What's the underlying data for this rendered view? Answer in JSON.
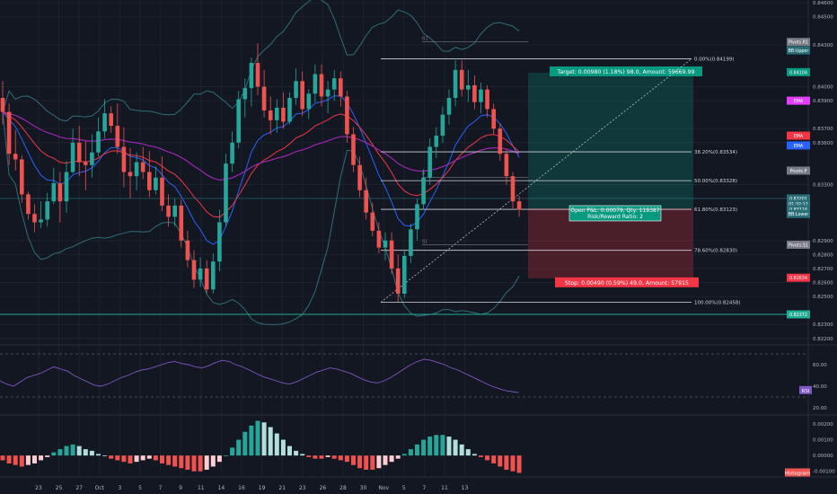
{
  "chart_data": {
    "type": "candlestick",
    "price_axis_ticks": [
      "0.84600",
      "0.84500",
      "0.84300",
      "0.84000",
      "0.83900",
      "0.83700",
      "0.83600",
      "0.83300",
      "0.82900",
      "0.82800",
      "0.82700",
      "0.82600",
      "0.82500",
      "0.82300",
      "0.82200"
    ],
    "price_range": [
      0.8216,
      0.8462
    ],
    "rsi_ticks": [
      "60.00",
      "40.00",
      "20.00"
    ],
    "hist_ticks": [
      "0.00200",
      "0.00100",
      "0.00000",
      "-0.00100"
    ],
    "x_ticks": [
      "23",
      "25",
      "27",
      "Oct",
      "3",
      "5",
      "7",
      "9",
      "11",
      "14",
      "16",
      "19",
      "21",
      "23",
      "26",
      "28",
      "30",
      "Nov",
      "5",
      "7",
      "11",
      "13"
    ],
    "candles": [
      [
        0.8392,
        0.8404,
        0.8373,
        0.8382
      ],
      [
        0.8382,
        0.8388,
        0.8344,
        0.8352
      ],
      [
        0.8352,
        0.8369,
        0.834,
        0.8348
      ],
      [
        0.8348,
        0.8351,
        0.8317,
        0.8323
      ],
      [
        0.8323,
        0.8325,
        0.8305,
        0.8309
      ],
      [
        0.8309,
        0.8316,
        0.8296,
        0.8303
      ],
      [
        0.8303,
        0.8318,
        0.8299,
        0.8305
      ],
      [
        0.8305,
        0.8324,
        0.83,
        0.8318
      ],
      [
        0.8318,
        0.8342,
        0.8316,
        0.8331
      ],
      [
        0.8331,
        0.8339,
        0.8303,
        0.8318
      ],
      [
        0.8318,
        0.8347,
        0.831,
        0.8339
      ],
      [
        0.8339,
        0.837,
        0.8338,
        0.836
      ],
      [
        0.836,
        0.8372,
        0.8336,
        0.8346
      ],
      [
        0.8346,
        0.8361,
        0.8326,
        0.8344
      ],
      [
        0.8344,
        0.8366,
        0.8335,
        0.8353
      ],
      [
        0.8353,
        0.8378,
        0.835,
        0.8368
      ],
      [
        0.8368,
        0.8391,
        0.8363,
        0.8381
      ],
      [
        0.8381,
        0.8386,
        0.8367,
        0.8372
      ],
      [
        0.8372,
        0.8388,
        0.8352,
        0.8357
      ],
      [
        0.8357,
        0.8371,
        0.8328,
        0.8339
      ],
      [
        0.8339,
        0.8356,
        0.832,
        0.8336
      ],
      [
        0.8336,
        0.8353,
        0.8326,
        0.8346
      ],
      [
        0.8346,
        0.8357,
        0.8334,
        0.8339
      ],
      [
        0.8339,
        0.8354,
        0.8321,
        0.8326
      ],
      [
        0.8326,
        0.8343,
        0.8323,
        0.8335
      ],
      [
        0.8335,
        0.835,
        0.8311,
        0.8315
      ],
      [
        0.8315,
        0.8323,
        0.83,
        0.8307
      ],
      [
        0.8307,
        0.832,
        0.83,
        0.8315
      ],
      [
        0.8315,
        0.8319,
        0.8285,
        0.829
      ],
      [
        0.829,
        0.8297,
        0.8271,
        0.8276
      ],
      [
        0.8276,
        0.8283,
        0.8256,
        0.8262
      ],
      [
        0.8262,
        0.8278,
        0.8257,
        0.827
      ],
      [
        0.827,
        0.8276,
        0.8252,
        0.8255
      ],
      [
        0.8255,
        0.8281,
        0.8252,
        0.8275
      ],
      [
        0.8275,
        0.8312,
        0.8268,
        0.8303
      ],
      [
        0.8303,
        0.8352,
        0.83,
        0.8345
      ],
      [
        0.8345,
        0.8368,
        0.8339,
        0.836
      ],
      [
        0.836,
        0.8397,
        0.8356,
        0.8391
      ],
      [
        0.8391,
        0.8406,
        0.8378,
        0.8399
      ],
      [
        0.8399,
        0.8421,
        0.8386,
        0.8417
      ],
      [
        0.8417,
        0.8431,
        0.8394,
        0.84
      ],
      [
        0.84,
        0.8412,
        0.8378,
        0.8383
      ],
      [
        0.8383,
        0.8393,
        0.8366,
        0.8376
      ],
      [
        0.8376,
        0.8391,
        0.8367,
        0.8385
      ],
      [
        0.8385,
        0.8396,
        0.837,
        0.8375
      ],
      [
        0.8375,
        0.8396,
        0.8373,
        0.8392
      ],
      [
        0.8392,
        0.8413,
        0.8387,
        0.8404
      ],
      [
        0.8404,
        0.8411,
        0.8379,
        0.8384
      ],
      [
        0.8384,
        0.8398,
        0.8377,
        0.8395
      ],
      [
        0.8395,
        0.8416,
        0.8389,
        0.8409
      ],
      [
        0.8409,
        0.8416,
        0.8386,
        0.8393
      ],
      [
        0.8393,
        0.8404,
        0.8381,
        0.8398
      ],
      [
        0.8398,
        0.8412,
        0.839,
        0.8406
      ],
      [
        0.8406,
        0.8411,
        0.8386,
        0.8393
      ],
      [
        0.8393,
        0.8397,
        0.836,
        0.8366
      ],
      [
        0.8366,
        0.8371,
        0.8339,
        0.8344
      ],
      [
        0.8344,
        0.835,
        0.8321,
        0.8326
      ],
      [
        0.8326,
        0.8335,
        0.8305,
        0.831
      ],
      [
        0.831,
        0.8317,
        0.8293,
        0.8297
      ],
      [
        0.8297,
        0.8303,
        0.8281,
        0.8285
      ],
      [
        0.8285,
        0.8296,
        0.8276,
        0.829
      ],
      [
        0.829,
        0.8296,
        0.8266,
        0.827
      ],
      [
        0.827,
        0.828,
        0.8246,
        0.8252
      ],
      [
        0.8252,
        0.8283,
        0.8249,
        0.8279
      ],
      [
        0.8279,
        0.8302,
        0.8274,
        0.8298
      ],
      [
        0.8298,
        0.832,
        0.829,
        0.8316
      ],
      [
        0.8316,
        0.8341,
        0.8312,
        0.8335
      ],
      [
        0.8335,
        0.8363,
        0.833,
        0.8357
      ],
      [
        0.8357,
        0.8371,
        0.8349,
        0.8365
      ],
      [
        0.8365,
        0.8386,
        0.836,
        0.838
      ],
      [
        0.838,
        0.8398,
        0.8373,
        0.8392
      ],
      [
        0.8392,
        0.8419,
        0.8386,
        0.8412
      ],
      [
        0.8412,
        0.8419,
        0.8393,
        0.8398
      ],
      [
        0.8398,
        0.8412,
        0.8389,
        0.8401
      ],
      [
        0.8401,
        0.8408,
        0.8384,
        0.8389
      ],
      [
        0.8389,
        0.8403,
        0.8381,
        0.8398
      ],
      [
        0.8398,
        0.8401,
        0.8378,
        0.8384
      ],
      [
        0.8384,
        0.8388,
        0.8366,
        0.837
      ],
      [
        0.837,
        0.8374,
        0.8347,
        0.8352
      ],
      [
        0.8352,
        0.8355,
        0.833,
        0.8336
      ],
      [
        0.8336,
        0.8339,
        0.8313,
        0.8318
      ],
      [
        0.8318,
        0.8322,
        0.8307,
        0.8312
      ]
    ],
    "hist_values": [
      -0.0003,
      -0.0005,
      -0.0006,
      -0.0007,
      -0.0006,
      -0.0005,
      -0.0003,
      -0.0001,
      0.0002,
      0.0004,
      0.0006,
      0.0007,
      0.0006,
      0.0004,
      0.0003,
      0.0001,
      0.0,
      -0.0002,
      -0.0003,
      -0.0004,
      -0.0005,
      -0.0004,
      -0.0003,
      -0.0002,
      -0.0003,
      -0.0005,
      -0.0006,
      -0.0007,
      -0.0008,
      -0.0009,
      -0.001,
      -0.001,
      -0.0009,
      -0.0007,
      -0.0004,
      0.0,
      0.0005,
      0.001,
      0.0015,
      0.0019,
      0.0022,
      0.0021,
      0.0018,
      0.0014,
      0.001,
      0.0006,
      0.0003,
      0.0001,
      -0.0001,
      -0.0002,
      -0.0002,
      -0.0001,
      -0.0002,
      -0.0003,
      -0.0004,
      -0.0006,
      -0.0008,
      -0.0009,
      -0.0009,
      -0.0008,
      -0.0006,
      -0.0004,
      -0.0002,
      0.0001,
      0.0004,
      0.0007,
      0.001,
      0.0012,
      0.0013,
      0.0013,
      0.0012,
      0.001,
      0.0007,
      0.0004,
      0.0001,
      -0.0001,
      -0.0003,
      -0.0005,
      -0.0007,
      -0.0009,
      -0.001,
      -0.0011
    ],
    "rsi_values": [
      45,
      42,
      40,
      44,
      48,
      50,
      52,
      55,
      58,
      56,
      54,
      50,
      47,
      44,
      41,
      40,
      42,
      45,
      48,
      50,
      53,
      55,
      56,
      58,
      60,
      62,
      63,
      61,
      60,
      58,
      57,
      59,
      62,
      64,
      63,
      60,
      58,
      55,
      52,
      49,
      47,
      45,
      43,
      42,
      44,
      47,
      50,
      53,
      55,
      57,
      56,
      54,
      52,
      49,
      46,
      44,
      43,
      45,
      48,
      52,
      56,
      60,
      63,
      65,
      64,
      62,
      60,
      57,
      55,
      52,
      49,
      46,
      43,
      40,
      38,
      36,
      35,
      34
    ],
    "fibs": [
      {
        "label": "0.00%(0.84199)",
        "price": 0.84199
      },
      {
        "label": "38.20%(0.83534)",
        "price": 0.83534
      },
      {
        "label": "50.00%(0.83328)",
        "price": 0.83328
      },
      {
        "label": "61.80%(0.83123)",
        "price": 0.83123
      },
      {
        "label": "78.60%(0.82830)",
        "price": 0.8283
      },
      {
        "label": "100.00%(0.82458)",
        "price": 0.82458
      }
    ],
    "position": {
      "target_text": "Target: 0.00980 (1.18%) 98.0, Amount: 59669.99",
      "stop_text": "Stop: 0.00490 (0.59%) 49.0, Amount: 57915",
      "pnl_text": "Open P&L: 0.00079, Qty: 119387",
      "rr_text": "Risk/Reward Ratio: 2",
      "entry": 0.8313,
      "target": 0.841,
      "stop": 0.8263
    },
    "pivot_labels": [
      "R1",
      "P",
      "S1"
    ],
    "right_tags": [
      {
        "text": "Pivots.R1",
        "color": "#787b86",
        "price": 0.8432
      },
      {
        "text": "BB:Upper",
        "color": "#2a6f78",
        "price": 0.8426
      },
      {
        "text": "0.84104",
        "color": "#089981",
        "price": 0.84104
      },
      {
        "text": "EMA",
        "color": "#e040fb",
        "price": 0.839
      },
      {
        "text": "EMA",
        "color": "#f23645",
        "price": 0.8365
      },
      {
        "text": "EMA",
        "color": "#2962ff",
        "price": 0.8358
      },
      {
        "text": "Pivots.P",
        "color": "#787b86",
        "price": 0.834
      },
      {
        "text": "0.83201",
        "color": "#2a6f78",
        "price": 0.83201
      },
      {
        "text": "01:32:12",
        "color": "#2a6f78",
        "price": 0.83162
      },
      {
        "text": "0.83124",
        "color": "#2a6f78",
        "price": 0.83124
      },
      {
        "text": "BB:Lower",
        "color": "#2a6f78",
        "price": 0.8309
      },
      {
        "text": "Pivots.S1",
        "color": "#787b86",
        "price": 0.8287
      },
      {
        "text": "0.82634",
        "color": "#f23645",
        "price": 0.82634
      },
      {
        "text": "0.82372",
        "color": "#22ab94",
        "price": 0.82372
      }
    ],
    "rsi_label": "RSI",
    "hist_label": "Histogram"
  }
}
